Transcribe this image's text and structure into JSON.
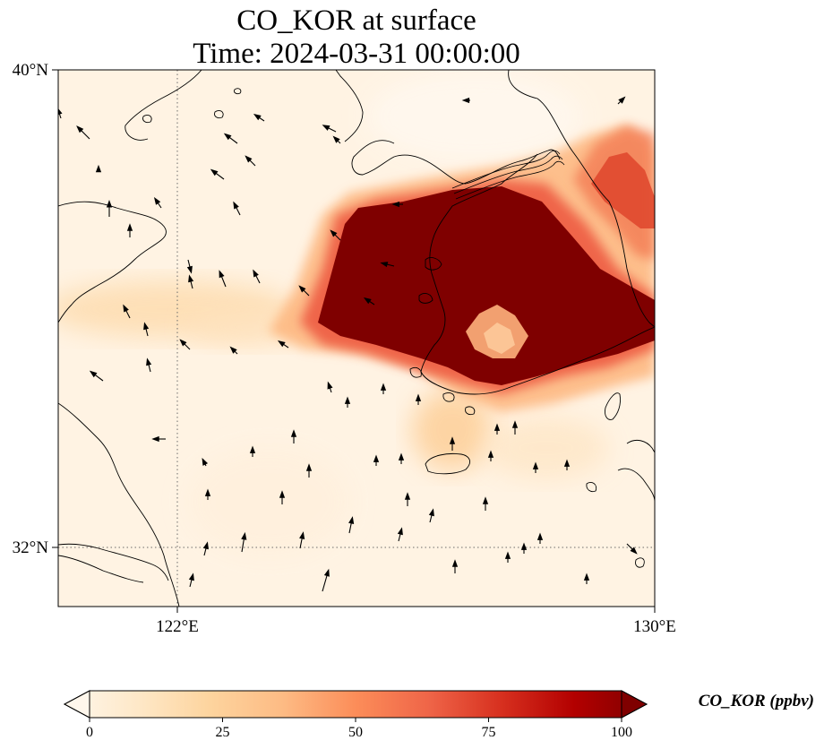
{
  "title": {
    "line1": "CO_KOR at surface",
    "line2": "Time: 2024-03-31 00:00:00"
  },
  "map": {
    "lon_range": [
      120,
      130
    ],
    "lat_range": [
      31,
      40
    ],
    "lon_ticks": [
      {
        "value": 122,
        "label": "122°E"
      },
      {
        "value": 130,
        "label": "130°E"
      }
    ],
    "lat_ticks": [
      {
        "value": 40,
        "label": "40°N"
      },
      {
        "value": 32,
        "label": "32°N"
      }
    ],
    "gridlines": "dotted"
  },
  "colorbar": {
    "label": "CO_KOR (ppbv)",
    "ticks": [
      {
        "value": 0,
        "label": "0"
      },
      {
        "value": 25,
        "label": "25"
      },
      {
        "value": 50,
        "label": "50"
      },
      {
        "value": 75,
        "label": "75"
      },
      {
        "value": 100,
        "label": "100"
      }
    ],
    "range": [
      0,
      100
    ],
    "colormap": "OrRd",
    "extend": "both",
    "colors": [
      "#fff7ec",
      "#fee8c8",
      "#fdd49e",
      "#fdbb84",
      "#fc8d59",
      "#ef6548",
      "#d7301f",
      "#b30000",
      "#7f0000"
    ]
  }
}
